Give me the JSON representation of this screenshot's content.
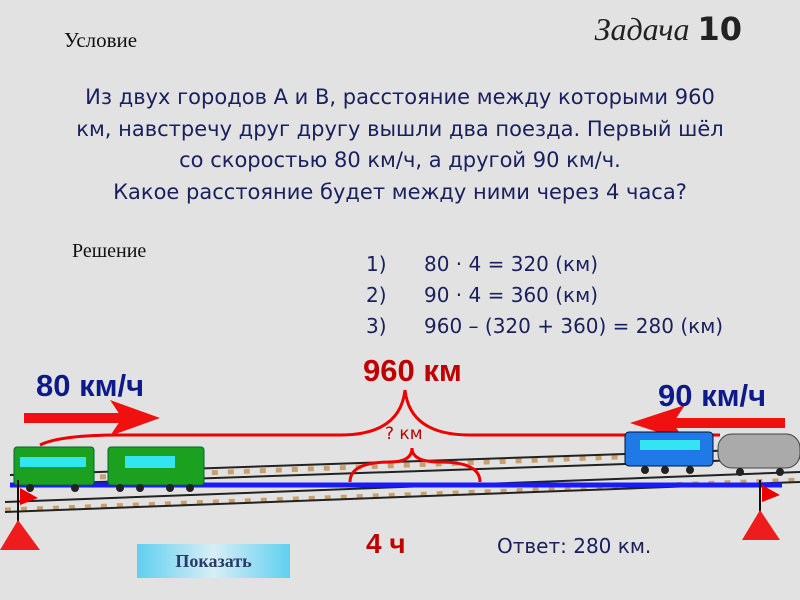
{
  "header": {
    "condition_label": "Условие",
    "task_word": "Задача",
    "task_number": "10"
  },
  "problem": {
    "lines": [
      "Из двух городов А и В, расстояние между которыми 960",
      "км, навстречу друг другу вышли два поезда. Первый шёл",
      "со скоростью 80 км/ч, а другой 90 км/ч.",
      "Какое расстояние будет между ними через 4 часа?"
    ]
  },
  "solution": {
    "label": "Решение",
    "steps": [
      {
        "n": "1)",
        "text": "80 · 4 = 320 (км)"
      },
      {
        "n": "2)",
        "text": "90 · 4 = 360 (км)"
      },
      {
        "n": "3)",
        "text": "960 – (320 + 360) = 280 (км)"
      }
    ]
  },
  "diagram": {
    "speed_left": "80 км/ч",
    "speed_right": "90 км/ч",
    "distance": "960 км",
    "unknown": "? км",
    "time": "4 ч",
    "answer": "Ответ: 280 км.",
    "colors": {
      "red": "#c00000",
      "blue": "#0d1a8a",
      "line": "#1a1aff"
    }
  },
  "button": {
    "show_label": "Показать"
  }
}
